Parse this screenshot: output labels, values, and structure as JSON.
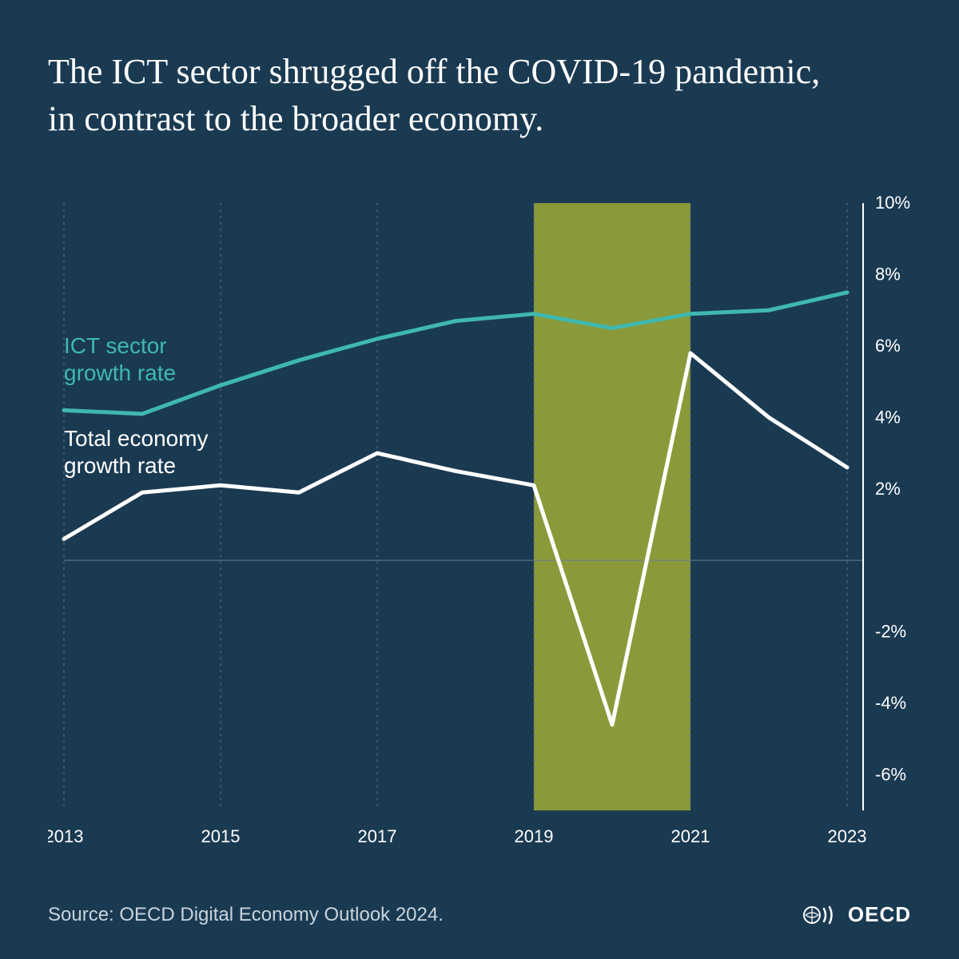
{
  "title": "The ICT sector shrugged off the COVID-19 pandemic, in contrast to the broader economy.",
  "source": "Source: OECD Digital Economy Outlook 2024.",
  "logo_text": "OECD",
  "chart": {
    "type": "line",
    "background_color": "#1a3a52",
    "highlight_band": {
      "x_start": 2019,
      "x_end": 2021,
      "color": "#8a9a3a"
    },
    "x": {
      "values": [
        2013,
        2014,
        2015,
        2016,
        2017,
        2018,
        2019,
        2020,
        2021,
        2022,
        2023
      ],
      "ticks": [
        2013,
        2015,
        2017,
        2019,
        2021,
        2023
      ],
      "tick_labels": [
        "2013",
        "2015",
        "2017",
        "2019",
        "2021",
        "2023"
      ],
      "label_fontsize": 22,
      "label_color": "#ffffff"
    },
    "y": {
      "min": -7,
      "max": 10,
      "ticks": [
        -6,
        -4,
        -2,
        0,
        2,
        4,
        6,
        8,
        10
      ],
      "tick_labels": [
        "-6%",
        "-4%",
        "-2%",
        "",
        "2%",
        "4%",
        "6%",
        "8%",
        "10%"
      ],
      "label_fontsize": 22,
      "label_color": "#ffffff",
      "axis_line_color": "#ffffff",
      "axis_line_width": 2
    },
    "zero_line": {
      "color": "#6b7f8e",
      "width": 1
    },
    "gridlines": {
      "vertical_at": [
        2013,
        2015,
        2017,
        2019,
        2021,
        2023
      ],
      "color": "#4a5f72",
      "dash": "3,5",
      "width": 1.5
    },
    "series": [
      {
        "name": "ICT sector growth rate",
        "label_lines": [
          "ICT sector",
          "growth rate"
        ],
        "color": "#3fb8af",
        "width": 5,
        "label_x": 0,
        "label_y": 5.8,
        "values": [
          4.2,
          4.1,
          4.9,
          5.6,
          6.2,
          6.7,
          6.9,
          6.5,
          6.9,
          7.0,
          7.5
        ]
      },
      {
        "name": "Total economy growth rate",
        "label_lines": [
          "Total economy",
          "growth rate"
        ],
        "color": "#ffffff",
        "width": 5,
        "label_x": 0,
        "label_y": 3.2,
        "values": [
          0.6,
          1.9,
          2.1,
          1.9,
          3.0,
          2.5,
          2.1,
          -4.6,
          5.8,
          4.0,
          2.6
        ]
      }
    ]
  }
}
